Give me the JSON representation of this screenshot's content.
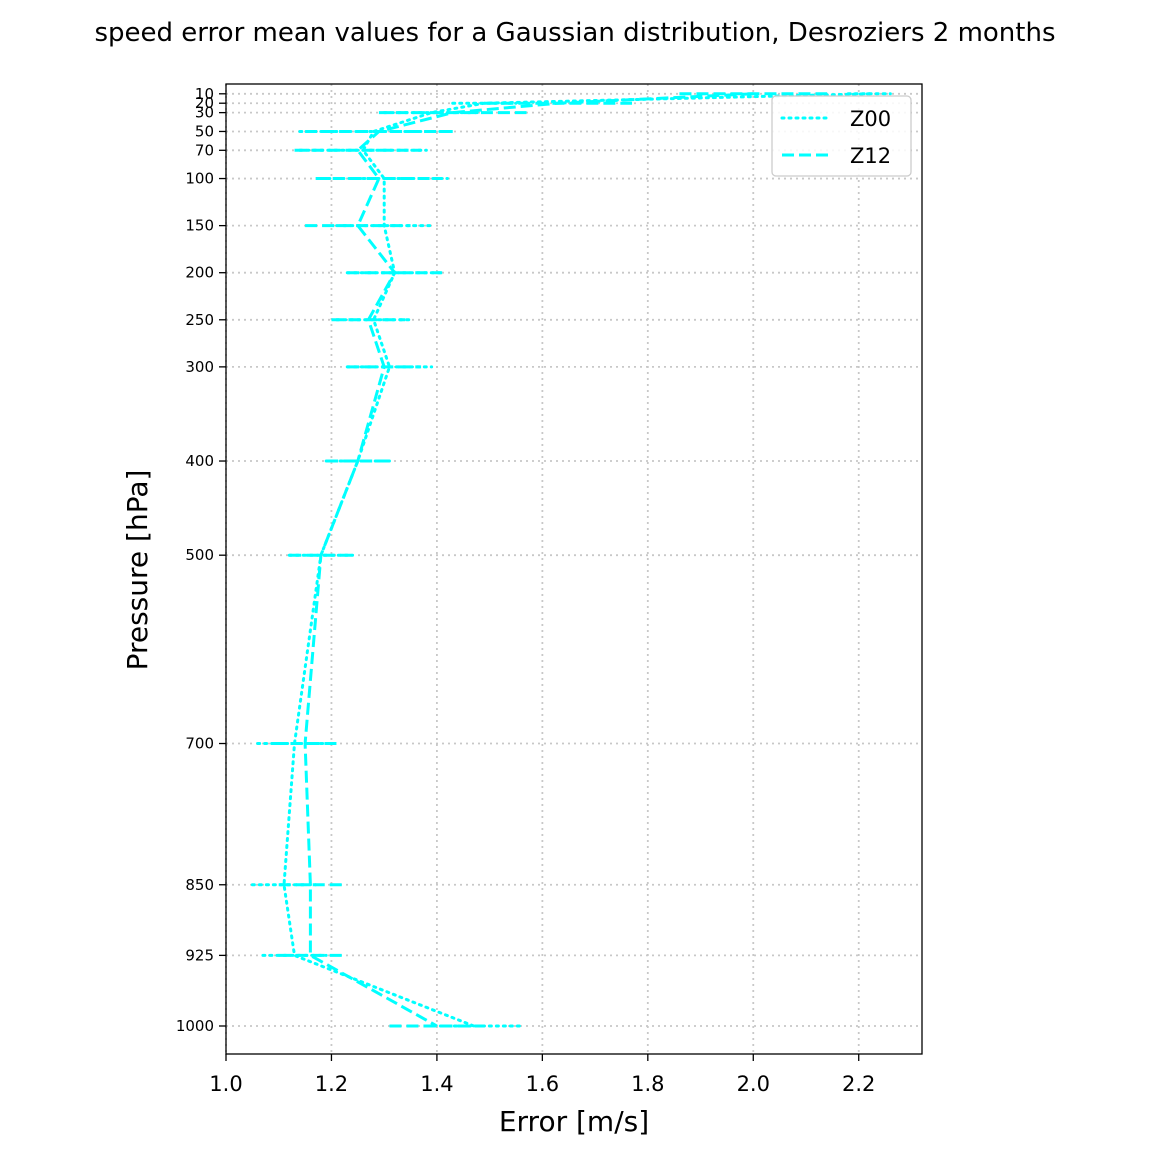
{
  "chart_data": {
    "type": "line",
    "title": "speed error mean values for a Gaussian distribution, Desroziers 2 months",
    "xlabel": "Error [m/s]",
    "ylabel": "Pressure [hPa]",
    "xlim": [
      1.0,
      2.32
    ],
    "ylim": [
      1000,
      10
    ],
    "grid": true,
    "legend_position": "top-right",
    "x_ticks": [
      "1.0",
      "1.2",
      "1.4",
      "1.6",
      "1.8",
      "2.0",
      "2.2"
    ],
    "y_ticks": [
      "10",
      "20",
      "30",
      "50",
      "70",
      "100",
      "150",
      "200",
      "250",
      "300",
      "400",
      "500",
      "700",
      "850",
      "925",
      "1000"
    ],
    "y": [
      10,
      20,
      30,
      50,
      70,
      100,
      150,
      200,
      250,
      300,
      400,
      500,
      700,
      850,
      925,
      1000
    ],
    "series": [
      {
        "name": "Z00",
        "style": "dotted",
        "color": "#00ffff",
        "values": [
          2.22,
          1.49,
          1.39,
          1.28,
          1.26,
          1.3,
          1.3,
          1.32,
          1.28,
          1.31,
          1.25,
          1.18,
          1.13,
          1.11,
          1.13,
          1.47
        ],
        "errors": [
          0.04,
          0.06,
          0.09,
          0.14,
          0.12,
          0.12,
          0.09,
          0.09,
          0.07,
          0.08,
          0.06,
          0.06,
          0.07,
          0.06,
          0.06,
          0.09
        ]
      },
      {
        "name": "Z12",
        "style": "dashed",
        "color": "#00ffff",
        "values": [
          2.0,
          1.63,
          1.43,
          1.29,
          1.25,
          1.29,
          1.25,
          1.32,
          1.27,
          1.3,
          1.25,
          1.18,
          1.15,
          1.16,
          1.16,
          1.4
        ],
        "errors": [
          0.14,
          0.14,
          0.14,
          0.14,
          0.12,
          0.12,
          0.1,
          0.09,
          0.07,
          0.07,
          0.06,
          0.06,
          0.06,
          0.06,
          0.06,
          0.09
        ]
      }
    ]
  }
}
